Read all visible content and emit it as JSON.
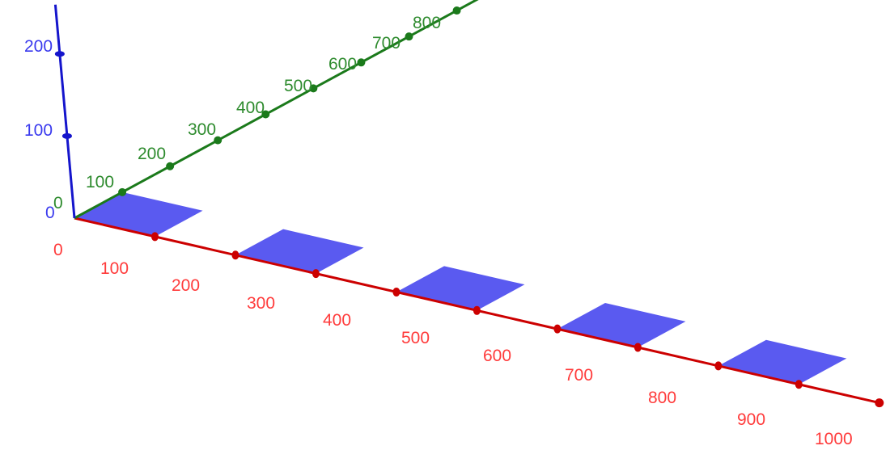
{
  "colors": {
    "x_axis": "#cc0000",
    "y_axis": "#1b7a1b",
    "z_axis": "#1515cc",
    "x_labels": "#ff3b3b",
    "y_labels": "#2e8b2e",
    "z_labels": "#3a3aee",
    "tile_fill": "#5a5af0"
  },
  "axes": {
    "x": {
      "ticks": [
        100,
        200,
        300,
        400,
        500,
        600,
        700,
        800,
        900
      ],
      "tick_labels": [
        "0",
        "100",
        "200",
        "300",
        "400",
        "500",
        "600",
        "700",
        "800",
        "900",
        "1000"
      ]
    },
    "y": {
      "ticks": [
        100,
        200,
        300,
        400,
        500,
        600,
        700,
        800
      ],
      "tick_labels": [
        "0",
        "100",
        "200",
        "300",
        "400",
        "500",
        "600",
        "700",
        "800"
      ]
    },
    "z": {
      "ticks": [
        100,
        200
      ],
      "tick_labels": [
        "0",
        "100",
        "200"
      ]
    }
  },
  "tiles": [
    {
      "x_from": 0,
      "x_to": 100,
      "y_from": 0,
      "y_to": 100
    },
    {
      "x_from": 200,
      "x_to": 300,
      "y_from": 0,
      "y_to": 100
    },
    {
      "x_from": 400,
      "x_to": 500,
      "y_from": 0,
      "y_to": 100
    },
    {
      "x_from": 600,
      "x_to": 700,
      "y_from": 0,
      "y_to": 100
    },
    {
      "x_from": 800,
      "x_to": 900,
      "y_from": 0,
      "y_to": 100
    }
  ]
}
